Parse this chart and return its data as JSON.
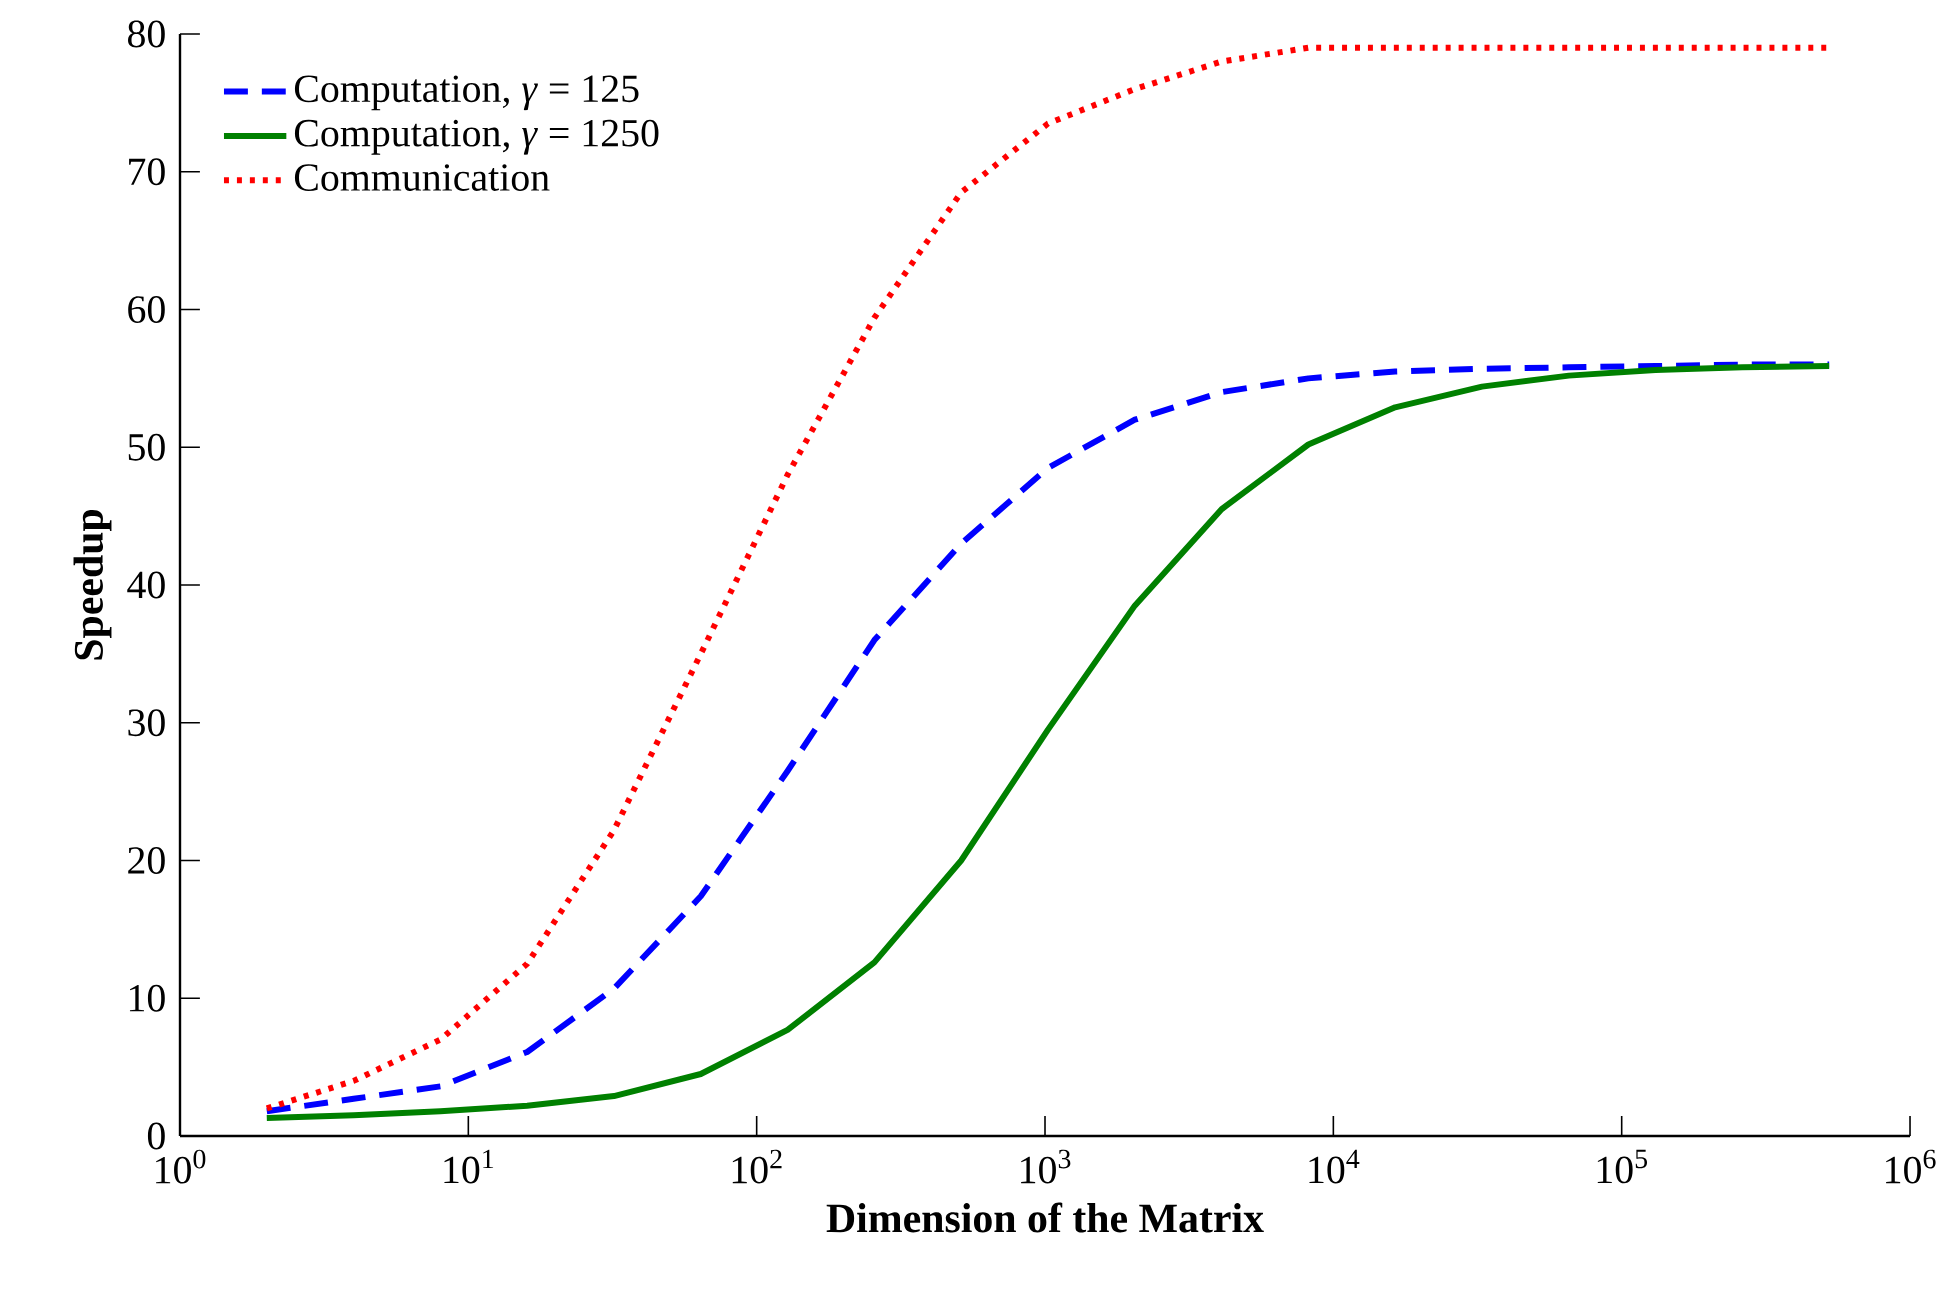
{
  "chart_data": {
    "type": "line",
    "xlabel": "Dimension of the Matrix",
    "ylabel": "Speedup",
    "log": "x",
    "grid": false,
    "legend": "top left",
    "x": [
      2,
      4,
      8,
      16,
      32,
      64,
      128,
      256,
      512,
      1024,
      2048,
      4096,
      8192,
      16384,
      32768,
      65536,
      131072,
      262144,
      524288
    ],
    "xlim": [
      1,
      1000000
    ],
    "xticks": [
      {
        "value": 1,
        "label": "10$^{0}$"
      },
      {
        "value": 10,
        "label": "10$^{1}$"
      },
      {
        "value": 100,
        "label": "10$^{2}$"
      },
      {
        "value": 1000,
        "label": "10$^{3}$"
      },
      {
        "value": 10000,
        "label": "10$^{4}$"
      },
      {
        "value": 100000,
        "label": "10$^{5}$"
      },
      {
        "value": 1000000,
        "label": "10$^{6}$"
      }
    ],
    "ylim": [
      0,
      80
    ],
    "yticks": [
      0,
      10,
      20,
      30,
      40,
      50,
      60,
      70,
      80
    ],
    "series": [
      {
        "name": "Computation, *γ* = 125",
        "color": "#0000ff",
        "line_style": "dashed",
        "values": [
          1.8,
          2.7,
          3.6,
          6.1,
          10.7,
          17.4,
          26.5,
          36,
          43,
          48.5,
          52,
          54,
          55,
          55.5,
          55.7,
          55.8,
          55.9,
          56,
          56
        ]
      },
      {
        "name": "Computation, *γ* = 1250",
        "color": "#008000",
        "line_style": "solid",
        "values": [
          1.3,
          1.5,
          1.8,
          2.2,
          2.9,
          4.5,
          7.7,
          12.6,
          20,
          29.5,
          38.5,
          45.5,
          50.2,
          52.9,
          54.4,
          55.2,
          55.6,
          55.8,
          55.9
        ]
      },
      {
        "name": "Communication",
        "color": "#ff0000",
        "line_style": "dotted",
        "values": [
          2,
          4,
          7,
          12.5,
          22.2,
          35,
          48,
          59.4,
          68.5,
          73.5,
          76,
          78,
          79,
          79,
          79,
          79,
          79,
          79,
          79
        ]
      }
    ]
  }
}
